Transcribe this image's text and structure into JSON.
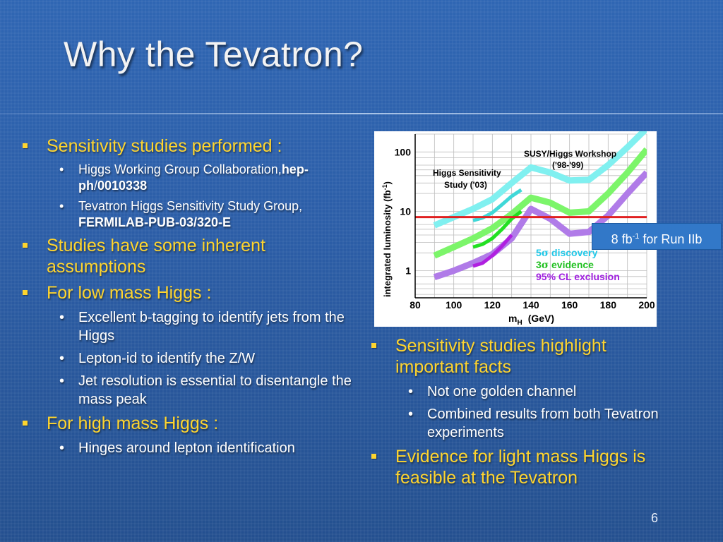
{
  "slide": {
    "title": "Why the Tevatron?",
    "page_number": "6"
  },
  "left_column": {
    "item1": {
      "label": "Sensitivity studies performed :",
      "sub1_text": "Higgs Working Group Collaboration,",
      "sub1_ref_a": "hep-ph",
      "sub1_sep": "/",
      "sub1_ref_b": "0010338",
      "sub2_text": "Tevatron Higgs Sensitivity Study Group, ",
      "sub2_ref": "FERMILAB-PUB-03/320-E"
    },
    "item2": {
      "label": "Studies have some inherent assumptions"
    },
    "item3": {
      "label": "For low mass Higgs :",
      "subs": [
        "Excellent b-tagging to identify jets from the Higgs",
        "Lepton-id to identify the Z/W",
        "Jet resolution is essential to disentangle the mass peak"
      ]
    },
    "item4": {
      "label": "For high mass Higgs :",
      "subs": [
        "Hinges around lepton identification"
      ]
    }
  },
  "right_column": {
    "item1": {
      "label": "Sensitivity studies highlight important facts",
      "subs": [
        "Not one golden channel",
        "Combined results from both Tevatron experiments"
      ]
    },
    "item2": {
      "label": "Evidence for light mass Higgs is feasible at the Tevatron"
    }
  },
  "callout": {
    "prefix": "8 fb",
    "sup": "-1",
    "suffix": " for Run IIb"
  },
  "colors": {
    "background": "#2c5ea8",
    "level1_text": "#ffd52e",
    "level2_text": "#ffffff",
    "discovery": "#80f0f0",
    "evidence": "#7cf56a",
    "exclusion": "#b07be8",
    "run2b_line": "#e02020"
  },
  "chart_data": {
    "type": "line",
    "ylabel": "integrated luminosity (fb",
    "ylabel_sup": "-1",
    "ylabel_close": ")",
    "xlabel": "m",
    "xlabel_sub": "H",
    "xlabel_unit": "(GeV)",
    "x_ticks": [
      "80",
      "100",
      "120",
      "140",
      "160",
      "180",
      "200"
    ],
    "y_ticks": [
      "1",
      "10",
      "100"
    ],
    "xlim": [
      80,
      200
    ],
    "ylim": [
      0.35,
      200
    ],
    "y_scale": "log",
    "grid": true,
    "annotations": {
      "susy_line1": "SUSY/Higgs Workshop",
      "susy_line2": "('98-'99)",
      "hss_line1": "Higgs Sensitivity",
      "hss_line2": "Study ('03)"
    },
    "legend": {
      "discovery_num": "5",
      "discovery_sym": "σ",
      "discovery_text": " discovery",
      "evidence_num": "3",
      "evidence_sym": "σ",
      "evidence_text": " evidence",
      "exclusion": "95% CL exclusion"
    },
    "series": [
      {
        "key": "disc_9899",
        "color": "#80f0f0",
        "width": 9,
        "x": [
          90,
          100,
          110,
          120,
          130,
          140,
          150,
          160,
          170,
          180,
          190,
          200
        ],
        "y": [
          5.8,
          8.0,
          11,
          16,
          30,
          55,
          45,
          33,
          34,
          60,
          120,
          250
        ]
      },
      {
        "key": "evid_9899",
        "color": "#7cf56a",
        "width": 9,
        "x": [
          90,
          100,
          110,
          120,
          130,
          140,
          150,
          160,
          170,
          180,
          190,
          200
        ],
        "y": [
          1.8,
          2.5,
          3.5,
          5.2,
          9.0,
          17,
          14,
          9.5,
          10,
          20,
          45,
          110
        ]
      },
      {
        "key": "excl_9899",
        "color": "#b07be8",
        "width": 9,
        "x": [
          90,
          100,
          110,
          120,
          130,
          140,
          150,
          160,
          170,
          180,
          190,
          200
        ],
        "y": [
          0.78,
          1.0,
          1.35,
          1.9,
          3.5,
          11,
          7.5,
          4.2,
          4.5,
          8.5,
          20,
          45
        ]
      },
      {
        "key": "disc_03",
        "color": "#40d8d8",
        "width": 5,
        "x": [
          110,
          115,
          120,
          125,
          130,
          135
        ],
        "y": [
          7.0,
          7.8,
          9.5,
          13,
          18,
          23
        ]
      },
      {
        "key": "evid_03",
        "color": "#22e022",
        "width": 5,
        "x": [
          110,
          115,
          120,
          125,
          130,
          135
        ],
        "y": [
          2.5,
          2.8,
          3.5,
          5.0,
          7.5,
          10
        ]
      },
      {
        "key": "excl_03",
        "color": "#b020e0",
        "width": 5,
        "x": [
          110,
          115,
          120,
          125,
          130
        ],
        "y": [
          1.2,
          1.35,
          1.8,
          2.6,
          4.0
        ]
      },
      {
        "key": "run2b",
        "color": "#e02020",
        "width": 3,
        "x": [
          80,
          200
        ],
        "y": [
          8,
          8
        ]
      }
    ]
  }
}
